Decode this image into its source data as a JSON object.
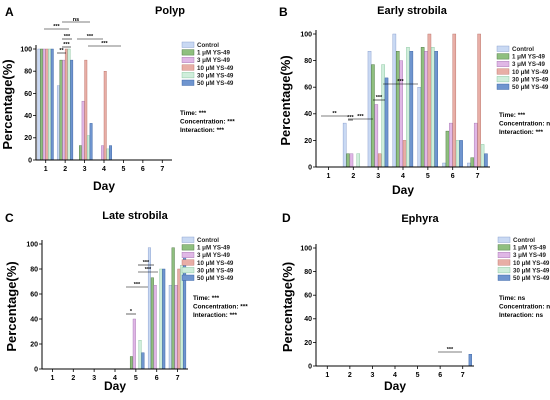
{
  "colors": {
    "series": [
      "#c9d9f3",
      "#8fbf7f",
      "#e0b7e6",
      "#e8aea6",
      "#cfeedb",
      "#6f95cf"
    ],
    "strokes": [
      "#7d94c8",
      "#3e6a33",
      "#a070ae",
      "#b56a60",
      "#7fbf96",
      "#2f5a9e"
    ],
    "axis": "#000000"
  },
  "chart_data": [
    {
      "type": "bar",
      "panel": "A",
      "title": "Polyp",
      "xlabel": "Day",
      "ylabel": "Percentage(%)",
      "ylim": [
        0,
        100
      ],
      "yticks": [
        0,
        20,
        40,
        60,
        80,
        100
      ],
      "categories": [
        "1",
        "2",
        "3",
        "4",
        "5",
        "6",
        "7"
      ],
      "series": [
        {
          "name": "Control",
          "values": [
            100,
            67,
            0,
            0,
            0,
            0,
            0
          ]
        },
        {
          "name": "1 μM YS-49",
          "values": [
            100,
            90,
            13,
            0,
            0,
            0,
            0
          ]
        },
        {
          "name": "3 μM YS-49",
          "values": [
            100,
            90,
            53,
            13,
            0,
            0,
            0
          ]
        },
        {
          "name": "10 μM YS-49",
          "values": [
            100,
            100,
            90,
            80,
            0,
            0,
            0
          ]
        },
        {
          "name": "30 μM YS-49",
          "values": [
            100,
            100,
            22,
            10,
            0,
            0,
            0
          ]
        },
        {
          "name": "50 μM YS-49",
          "values": [
            100,
            90,
            33,
            13,
            0,
            0,
            0
          ]
        }
      ],
      "stats": [
        "Time: ***",
        "Concentration: ***",
        "Interaction: ***"
      ],
      "significance": [
        "***",
        "***",
        "***",
        "**",
        "ns",
        "***",
        "***"
      ]
    },
    {
      "type": "bar",
      "panel": "B",
      "title": "Early strobila",
      "xlabel": "Day",
      "ylabel": "Percentage(%)",
      "ylim": [
        0,
        100
      ],
      "yticks": [
        0,
        20,
        40,
        60,
        80,
        100
      ],
      "categories": [
        "1",
        "2",
        "3",
        "4",
        "5",
        "6",
        "7"
      ],
      "series": [
        {
          "name": "Control",
          "values": [
            0,
            33,
            87,
            100,
            60,
            3,
            3
          ]
        },
        {
          "name": "1 μM YS-49",
          "values": [
            0,
            10,
            77,
            87,
            90,
            27,
            7
          ]
        },
        {
          "name": "3 μM YS-49",
          "values": [
            0,
            10,
            47,
            80,
            87,
            33,
            33
          ]
        },
        {
          "name": "10 μM YS-49",
          "values": [
            0,
            0,
            10,
            20,
            100,
            100,
            100
          ]
        },
        {
          "name": "30 μM YS-49",
          "values": [
            0,
            10,
            77,
            90,
            90,
            20,
            17
          ]
        },
        {
          "name": "50 μM YS-49",
          "values": [
            0,
            0,
            67,
            87,
            87,
            20,
            10
          ]
        }
      ],
      "stats": [
        "Time: ***",
        "Concentration: ns",
        "Interaction: ***"
      ],
      "significance": [
        "**",
        "***",
        "***",
        "***",
        "***"
      ]
    },
    {
      "type": "bar",
      "panel": "C",
      "title": "Late strobila",
      "xlabel": "Day",
      "ylabel": "Percentage(%)",
      "ylim": [
        0,
        100
      ],
      "yticks": [
        0,
        20,
        40,
        60,
        80,
        100
      ],
      "categories": [
        "1",
        "2",
        "3",
        "4",
        "5",
        "6",
        "7"
      ],
      "series": [
        {
          "name": "Control",
          "values": [
            0,
            0,
            0,
            0,
            0,
            97,
            67
          ]
        },
        {
          "name": "1 μM YS-49",
          "values": [
            0,
            0,
            0,
            0,
            10,
            73,
            97
          ]
        },
        {
          "name": "3 μM YS-49",
          "values": [
            0,
            0,
            0,
            0,
            40,
            67,
            67
          ]
        },
        {
          "name": "10 μM YS-49",
          "values": [
            0,
            0,
            0,
            0,
            0,
            0,
            80
          ]
        },
        {
          "name": "30 μM YS-49",
          "values": [
            0,
            0,
            0,
            0,
            23,
            80,
            83
          ]
        },
        {
          "name": "50 μM YS-49",
          "values": [
            0,
            0,
            0,
            0,
            13,
            80,
            90
          ]
        }
      ],
      "stats": [
        "Time: ***",
        "Concentration: ***",
        "Interaction: ***"
      ],
      "significance": [
        "*",
        "***",
        "***",
        "***"
      ]
    },
    {
      "type": "bar",
      "panel": "D",
      "title": "Ephyra",
      "xlabel": "Day",
      "ylabel": "Percentage(%)",
      "ylim": [
        0,
        100
      ],
      "yticks": [
        0,
        20,
        40,
        60,
        80,
        100
      ],
      "categories": [
        "1",
        "2",
        "3",
        "4",
        "5",
        "6",
        "7"
      ],
      "series": [
        {
          "name": "Control",
          "values": [
            0,
            0,
            0,
            0,
            0,
            0,
            0
          ]
        },
        {
          "name": "1 μM YS-49",
          "values": [
            0,
            0,
            0,
            0,
            0,
            0,
            0
          ]
        },
        {
          "name": "3 μM YS-49",
          "values": [
            0,
            0,
            0,
            0,
            0,
            0,
            0
          ]
        },
        {
          "name": "10 μM YS-49",
          "values": [
            0,
            0,
            0,
            0,
            0,
            0,
            0
          ]
        },
        {
          "name": "30 μM YS-49",
          "values": [
            0,
            0,
            0,
            0,
            0,
            0,
            0
          ]
        },
        {
          "name": "50 μM YS-49",
          "values": [
            0,
            0,
            0,
            0,
            0,
            0,
            10
          ]
        }
      ],
      "stats": [
        "Time: ns",
        "Concentration: ns",
        "Interaction: ns"
      ],
      "significance": [
        "***"
      ]
    }
  ]
}
